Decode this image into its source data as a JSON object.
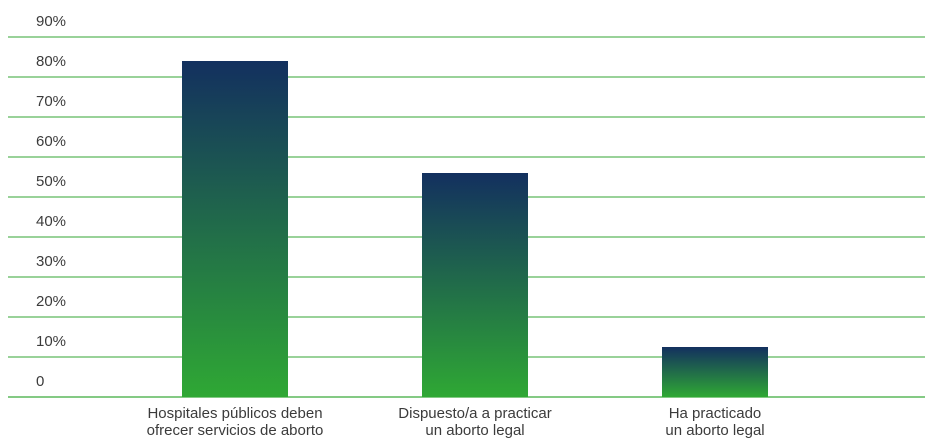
{
  "chart_data": {
    "type": "bar",
    "categories": [
      [
        "Hospitales públicos deben",
        "ofrecer servicios de aborto"
      ],
      [
        "Dispuesto/a a practicar",
        "un aborto legal"
      ],
      [
        "Ha practicado",
        "un aborto legal"
      ]
    ],
    "values": [
      84,
      56,
      12.5
    ],
    "ylim": [
      0,
      90
    ],
    "yticks": [
      "0",
      "10%",
      "20%",
      "30%",
      "40%",
      "50%",
      "60%",
      "70%",
      "80%",
      "90%"
    ],
    "grid": true,
    "colors": {
      "grid": "#5cb85c",
      "bar_top": "#13305f",
      "bar_bottom": "#2fa834",
      "text": "#3b3b3b"
    }
  }
}
